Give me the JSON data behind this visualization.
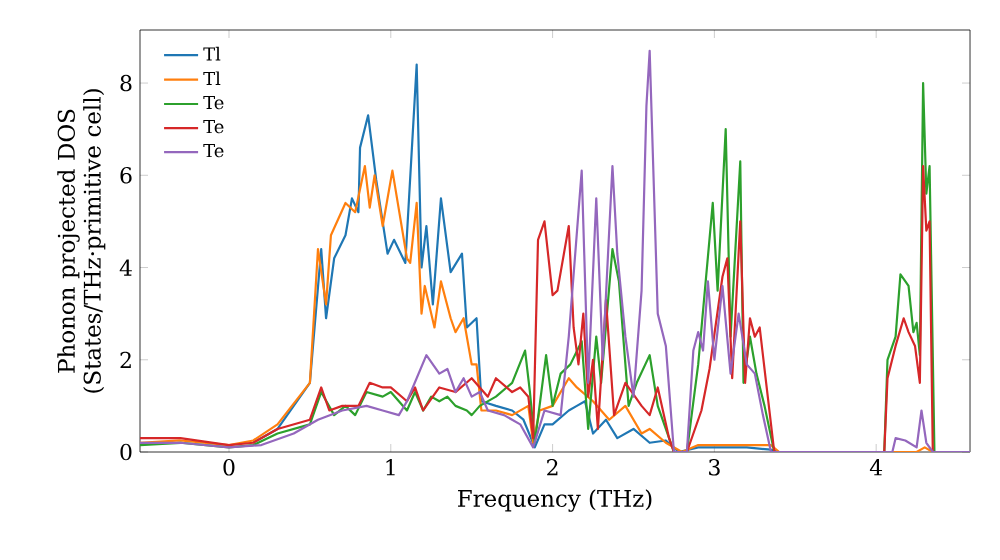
{
  "chart_data": {
    "type": "line",
    "xlabel": "Frequency (THz)",
    "ylabel": "Phonon projected DOS (States/THz·primitive cell)",
    "xlim": [
      -0.55,
      4.58
    ],
    "ylim": [
      0,
      9.15
    ],
    "xticks": [
      0,
      1,
      2,
      3,
      4
    ],
    "yticks": [
      0,
      2,
      4,
      6,
      8
    ],
    "legend": "top left",
    "grid": false,
    "marker": "none",
    "line_style": "solid",
    "series": [
      {
        "name": "Tl",
        "color": "#1f77b4",
        "x": [
          0.15,
          0.3,
          0.4,
          0.5,
          0.57,
          0.6,
          0.65,
          0.72,
          0.76,
          0.8,
          0.81,
          0.86,
          0.91,
          0.98,
          1.02,
          1.09,
          1.16,
          1.19,
          1.22,
          1.26,
          1.31,
          1.37,
          1.44,
          1.47,
          1.53,
          1.56,
          1.65,
          1.75,
          1.82,
          1.89,
          1.95,
          2.0,
          2.1,
          2.15,
          2.2,
          2.25,
          2.33,
          2.4,
          2.5,
          2.6,
          2.7,
          2.78,
          2.9,
          3.0,
          3.1,
          3.2,
          3.35,
          3.4,
          4.25
        ],
        "values": [
          0.2,
          0.5,
          1.0,
          1.5,
          4.4,
          2.9,
          4.2,
          4.7,
          5.5,
          5.2,
          6.6,
          7.3,
          5.9,
          4.3,
          4.6,
          4.1,
          8.4,
          4.0,
          4.9,
          3.2,
          5.5,
          3.9,
          4.3,
          2.7,
          2.9,
          1.1,
          1.0,
          0.9,
          0.7,
          0.1,
          0.6,
          0.6,
          0.9,
          1.0,
          1.1,
          0.4,
          0.7,
          0.3,
          0.5,
          0.2,
          0.25,
          0,
          0.1,
          0.1,
          0.1,
          0.1,
          0.05,
          0,
          0
        ]
      },
      {
        "name": "Tl",
        "color": "#ff7f0e",
        "x": [
          -0.55,
          -0.3,
          0,
          0.15,
          0.3,
          0.5,
          0.55,
          0.6,
          0.63,
          0.72,
          0.78,
          0.84,
          0.87,
          0.9,
          0.95,
          1.01,
          1.1,
          1.12,
          1.16,
          1.19,
          1.21,
          1.27,
          1.31,
          1.37,
          1.4,
          1.45,
          1.5,
          1.53,
          1.56,
          1.65,
          1.75,
          1.85,
          1.88,
          1.92,
          2.0,
          2.1,
          2.15,
          2.25,
          2.35,
          2.45,
          2.55,
          2.6,
          2.7,
          2.8,
          2.9,
          3.1,
          3.35,
          3.4,
          4.25,
          4.3,
          4.35,
          4.58
        ],
        "values": [
          0.2,
          0.25,
          0.15,
          0.25,
          0.6,
          1.5,
          4.4,
          3.2,
          4.7,
          5.4,
          5.2,
          6.2,
          5.3,
          6.0,
          4.9,
          6.1,
          4.2,
          4.1,
          5.4,
          3.0,
          3.6,
          2.7,
          3.7,
          2.9,
          2.6,
          2.9,
          1.9,
          1.9,
          0.9,
          0.9,
          0.8,
          1.0,
          0.2,
          0.9,
          1.0,
          1.6,
          1.4,
          1.1,
          0.7,
          1.0,
          0.4,
          0.5,
          0.2,
          0,
          0.15,
          0.15,
          0.15,
          0,
          0,
          0.1,
          0,
          0
        ]
      },
      {
        "name": "Te",
        "color": "#2ca02c",
        "x": [
          -0.55,
          -0.3,
          0,
          0.15,
          0.3,
          0.5,
          0.57,
          0.65,
          0.72,
          0.78,
          0.85,
          0.95,
          1.0,
          1.1,
          1.15,
          1.2,
          1.25,
          1.3,
          1.35,
          1.4,
          1.47,
          1.5,
          1.55,
          1.65,
          1.75,
          1.83,
          1.86,
          1.89,
          1.96,
          2.0,
          2.05,
          2.11,
          2.18,
          2.22,
          2.27,
          2.3,
          2.37,
          2.41,
          2.47,
          2.52,
          2.6,
          2.65,
          2.72,
          2.75,
          2.83,
          2.9,
          2.99,
          3.02,
          3.07,
          3.1,
          3.16,
          3.18,
          3.22,
          3.26,
          3.31,
          3.37,
          4.05,
          4.07,
          4.12,
          4.15,
          4.2,
          4.23,
          4.25,
          4.27,
          4.29,
          4.31,
          4.33,
          4.36,
          4.58
        ],
        "values": [
          0.15,
          0.2,
          0.1,
          0.15,
          0.4,
          0.6,
          1.3,
          0.8,
          1.0,
          0.8,
          1.3,
          1.2,
          1.3,
          0.9,
          1.3,
          0.9,
          1.2,
          1.1,
          1.2,
          1.0,
          0.9,
          0.8,
          1.0,
          1.2,
          1.5,
          2.2,
          1.3,
          0.2,
          2.1,
          1.0,
          1.7,
          1.9,
          2.4,
          0.5,
          2.5,
          1.5,
          4.4,
          3.7,
          1.0,
          1.5,
          2.1,
          1.0,
          0.3,
          0,
          0,
          1.9,
          5.4,
          3.5,
          7.0,
          2.5,
          6.3,
          1.5,
          2.5,
          1.7,
          1.0,
          0,
          0,
          2.0,
          2.5,
          3.85,
          3.6,
          2.6,
          2.8,
          2.1,
          8.0,
          5.6,
          6.2,
          0,
          0
        ]
      },
      {
        "name": "Te",
        "color": "#d62728",
        "x": [
          -0.55,
          -0.3,
          0,
          0.15,
          0.3,
          0.5,
          0.57,
          0.62,
          0.7,
          0.8,
          0.87,
          0.95,
          1.0,
          1.1,
          1.15,
          1.2,
          1.3,
          1.4,
          1.5,
          1.6,
          1.65,
          1.75,
          1.8,
          1.85,
          1.88,
          1.91,
          1.95,
          2.0,
          2.03,
          2.1,
          2.13,
          2.16,
          2.19,
          2.22,
          2.25,
          2.28,
          2.33,
          2.38,
          2.45,
          2.55,
          2.6,
          2.65,
          2.72,
          2.75,
          2.83,
          2.92,
          2.97,
          3.05,
          3.08,
          3.11,
          3.16,
          3.19,
          3.22,
          3.25,
          3.28,
          3.32,
          3.37,
          4.05,
          4.07,
          4.12,
          4.17,
          4.2,
          4.24,
          4.27,
          4.29,
          4.31,
          4.33,
          4.35,
          4.58
        ],
        "values": [
          0.3,
          0.3,
          0.15,
          0.2,
          0.5,
          0.7,
          1.4,
          0.9,
          1.0,
          1.0,
          1.5,
          1.4,
          1.4,
          1.1,
          1.4,
          0.9,
          1.4,
          1.3,
          1.6,
          1.2,
          1.6,
          1.3,
          1.4,
          1.2,
          0.3,
          4.6,
          5.0,
          3.4,
          3.5,
          4.9,
          2.7,
          1.9,
          3.0,
          1.2,
          2.0,
          0.5,
          3.3,
          0.8,
          1.5,
          1.0,
          0.8,
          1.4,
          0.3,
          0,
          0,
          0.9,
          1.8,
          3.8,
          4.2,
          1.6,
          5.0,
          1.5,
          2.9,
          2.5,
          2.7,
          1.5,
          0,
          0,
          1.6,
          2.3,
          2.9,
          2.6,
          2.3,
          1.5,
          6.2,
          4.8,
          5.0,
          0,
          0
        ]
      },
      {
        "name": "Te",
        "color": "#9467bd",
        "x": [
          -0.55,
          -0.3,
          0,
          0.2,
          0.4,
          0.55,
          0.7,
          0.85,
          0.95,
          1.05,
          1.1,
          1.22,
          1.3,
          1.35,
          1.4,
          1.45,
          1.5,
          1.55,
          1.6,
          1.7,
          1.8,
          1.88,
          1.95,
          2.05,
          2.1,
          2.18,
          2.22,
          2.27,
          2.31,
          2.37,
          2.4,
          2.45,
          2.5,
          2.55,
          2.58,
          2.6,
          2.65,
          2.7,
          2.75,
          2.83,
          2.87,
          2.9,
          2.93,
          2.96,
          3.0,
          3.05,
          3.1,
          3.15,
          3.2,
          3.25,
          3.3,
          3.35,
          4.1,
          4.12,
          4.18,
          4.25,
          4.28,
          4.31,
          4.35,
          4.58
        ],
        "values": [
          0.2,
          0.2,
          0.1,
          0.15,
          0.4,
          0.7,
          0.9,
          1.0,
          0.9,
          0.8,
          1.1,
          2.1,
          1.7,
          1.8,
          1.3,
          1.6,
          1.2,
          1.3,
          0.9,
          0.8,
          0.6,
          0.1,
          0.9,
          0.8,
          2.5,
          6.1,
          1.5,
          5.5,
          2.0,
          6.2,
          4.3,
          2.5,
          1.2,
          3.5,
          7.5,
          8.7,
          3.0,
          2.3,
          0,
          0,
          2.2,
          2.6,
          2.2,
          3.7,
          2.0,
          3.6,
          1.7,
          3.0,
          1.9,
          1.7,
          0.8,
          0,
          0,
          0.3,
          0.25,
          0.1,
          0.9,
          0.2,
          0,
          0
        ]
      }
    ]
  }
}
